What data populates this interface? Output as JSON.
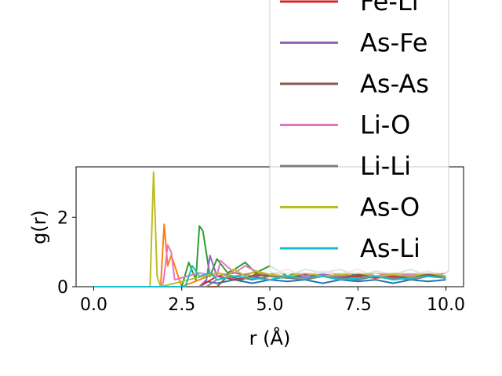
{
  "chart_data": {
    "type": "line",
    "xlabel": "r (Å)",
    "ylabel": "g(r)",
    "xlim": [
      -0.5,
      10.5
    ],
    "ylim": [
      0,
      3.45
    ],
    "xticks": [
      0.0,
      2.5,
      5.0,
      7.5,
      10.0
    ],
    "xtick_labels": [
      "0.0",
      "2.5",
      "5.0",
      "7.5",
      "10.0"
    ],
    "yticks": [
      0,
      2
    ],
    "ytick_labels": [
      "0",
      "2"
    ],
    "legend_position": "upper-right",
    "series": [
      {
        "name": "",
        "color": "#1f77b4",
        "x": [
          0.0,
          3.0,
          3.2,
          3.5,
          4.0,
          4.5,
          5.0,
          5.5,
          6.0,
          6.5,
          7.0,
          7.5,
          8.0,
          8.5,
          9.0,
          9.5,
          10.0
        ],
        "y": [
          0,
          0,
          0.15,
          0.1,
          0.2,
          0.1,
          0.2,
          0.15,
          0.2,
          0.1,
          0.2,
          0.15,
          0.2,
          0.1,
          0.2,
          0.15,
          0.2
        ]
      },
      {
        "name": "",
        "color": "#ff7f0e",
        "x": [
          0.0,
          1.9,
          2.0,
          2.1,
          2.2,
          2.5,
          3.5,
          4.0,
          4.5,
          5.0,
          5.5,
          6.0,
          6.5,
          7.0,
          7.5,
          8.0,
          8.5,
          9.0,
          9.5,
          10.0
        ],
        "y": [
          0,
          0,
          1.8,
          0.6,
          0.9,
          0,
          0.4,
          0.3,
          0.4,
          0.35,
          0.3,
          0.4,
          0.3,
          0.35,
          0.3,
          0.4,
          0.3,
          0.35,
          0.3,
          0.3
        ]
      },
      {
        "name": "",
        "color": "#2ca02c",
        "x": [
          0.0,
          2.5,
          2.7,
          2.9,
          3.0,
          3.1,
          3.3,
          3.5,
          3.8,
          4.0,
          4.3,
          4.6,
          5.0,
          5.5,
          6.0,
          6.5,
          7.0,
          7.5,
          8.0,
          8.5,
          9.0,
          9.5,
          10.0
        ],
        "y": [
          0,
          0,
          0.7,
          0.2,
          1.75,
          1.6,
          0.3,
          0.8,
          0.4,
          0.5,
          0.7,
          0.4,
          0.6,
          0.3,
          0.5,
          0.4,
          0.5,
          0.3,
          0.45,
          0.35,
          0.5,
          0.3,
          0.4
        ]
      },
      {
        "name": "Fe-Li",
        "color": "#d62728",
        "x": [
          0.0,
          3.0,
          3.5,
          4.0,
          4.5,
          5.0,
          5.5,
          6.0,
          6.5,
          7.0,
          7.5,
          8.0,
          8.5,
          9.0,
          9.5,
          10.0
        ],
        "y": [
          0,
          0,
          0.3,
          0.2,
          0.3,
          0.2,
          0.3,
          0.25,
          0.3,
          0.2,
          0.3,
          0.25,
          0.3,
          0.2,
          0.3,
          0.25
        ]
      },
      {
        "name": "As-Fe",
        "color": "#9467bd",
        "x": [
          0.0,
          3.0,
          3.2,
          3.3,
          3.5,
          4.0,
          4.5,
          5.0,
          5.5,
          6.0,
          6.5,
          7.0,
          7.5,
          8.0,
          8.5,
          9.0,
          9.5,
          10.0
        ],
        "y": [
          0,
          0,
          0.2,
          0.9,
          0.3,
          0.4,
          0.3,
          0.35,
          0.25,
          0.3,
          0.35,
          0.3,
          0.25,
          0.3,
          0.35,
          0.25,
          0.3,
          0.3
        ]
      },
      {
        "name": "As-As",
        "color": "#8c564b",
        "x": [
          0.0,
          3.5,
          3.8,
          4.2,
          4.6,
          5.0,
          5.5,
          6.0,
          6.5,
          7.0,
          7.5,
          8.0,
          8.5,
          9.0,
          9.5,
          10.0
        ],
        "y": [
          0,
          0,
          0.3,
          0.2,
          0.35,
          0.3,
          0.25,
          0.35,
          0.3,
          0.25,
          0.35,
          0.3,
          0.25,
          0.3,
          0.35,
          0.3
        ]
      },
      {
        "name": "Li-O",
        "color": "#e377c2",
        "x": [
          0.0,
          1.95,
          2.0,
          2.1,
          2.2,
          2.3,
          3.0,
          3.5,
          3.6,
          4.0,
          4.3,
          4.6,
          5.0,
          5.5,
          6.0,
          6.5,
          7.0,
          7.5,
          8.0,
          8.5,
          9.0,
          9.5,
          10.0
        ],
        "y": [
          0,
          0,
          0.3,
          1.2,
          1.0,
          0.2,
          0.4,
          0.3,
          0.75,
          0.4,
          0.6,
          0.45,
          0.35,
          0.5,
          0.3,
          0.45,
          0.35,
          0.5,
          0.3,
          0.4,
          0.35,
          0.45,
          0.3
        ]
      },
      {
        "name": "Li-Li",
        "color": "#7f7f7f",
        "x": [
          0.0,
          3.2,
          3.5,
          4.0,
          4.5,
          5.0,
          5.5,
          6.0,
          6.5,
          7.0,
          7.5,
          8.0,
          8.5,
          9.0,
          9.5,
          10.0
        ],
        "y": [
          0,
          0,
          0.2,
          0.3,
          0.2,
          0.3,
          0.25,
          0.2,
          0.3,
          0.25,
          0.2,
          0.3,
          0.25,
          0.2,
          0.3,
          0.25
        ]
      },
      {
        "name": "As-O",
        "color": "#bcbd22",
        "x": [
          0.0,
          1.6,
          1.7,
          1.8,
          1.9,
          3.5,
          3.8,
          4.0,
          4.3,
          4.6,
          5.0,
          5.5,
          6.0,
          6.5,
          7.0,
          7.5,
          8.0,
          8.5,
          9.0,
          9.5,
          10.0
        ],
        "y": [
          0,
          0,
          3.3,
          0.3,
          0,
          0.4,
          0.3,
          0.5,
          0.3,
          0.45,
          0.35,
          0.3,
          0.4,
          0.3,
          0.35,
          0.4,
          0.3,
          0.35,
          0.3,
          0.4,
          0.3
        ]
      },
      {
        "name": "As-Li",
        "color": "#17becf",
        "x": [
          0.0,
          2.6,
          2.8,
          3.0,
          3.3,
          3.5,
          4.0,
          4.5,
          5.0,
          5.5,
          6.0,
          6.5,
          7.0,
          7.5,
          8.0,
          8.5,
          9.0,
          9.5,
          10.0
        ],
        "y": [
          0,
          0,
          0.6,
          0.3,
          0.4,
          0.2,
          0.3,
          0.25,
          0.2,
          0.3,
          0.25,
          0.3,
          0.2,
          0.25,
          0.3,
          0.2,
          0.25,
          0.3,
          0.25
        ]
      }
    ]
  }
}
